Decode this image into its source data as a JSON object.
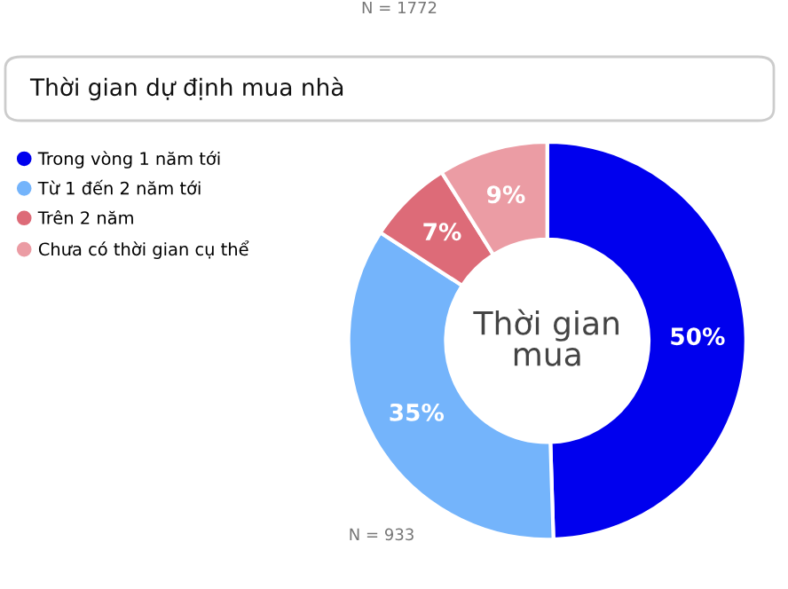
{
  "chart_data": {
    "type": "donut",
    "title": "Thời gian dự định mua nhà",
    "categories": [
      "Trong vòng 1 năm tới",
      "Từ 1 đến 2 năm tới",
      "Trên 2 năm",
      "Chưa có thời gian cụ thể"
    ],
    "values": [
      50,
      35,
      7,
      9
    ],
    "colors": [
      "#0000ee",
      "#74b4fb",
      "#dd6b78",
      "#eb9ca4"
    ],
    "value_labels": [
      "50%",
      "35%",
      "7%",
      "9%"
    ],
    "legend": "left",
    "annotations": [
      "Thời gian mua",
      "N = 933",
      "N = 1772"
    ]
  }
}
